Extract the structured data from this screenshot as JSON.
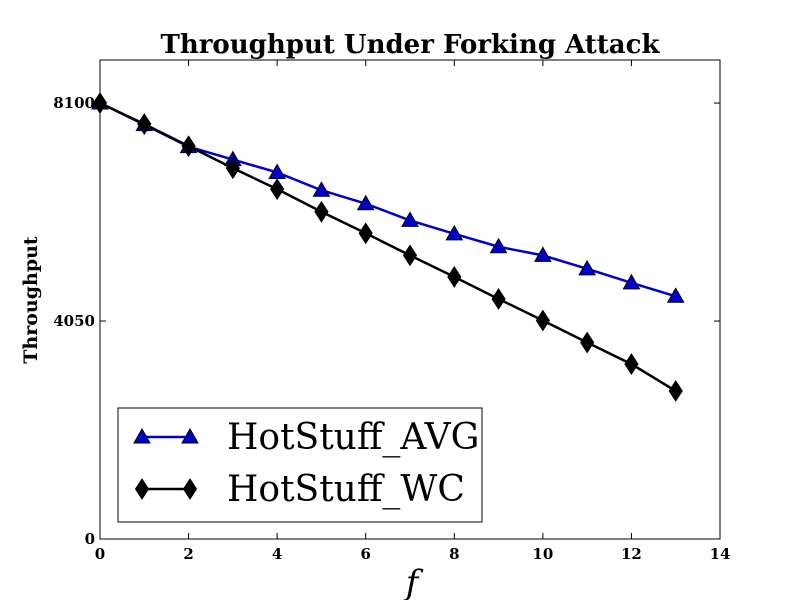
{
  "chart_data": {
    "type": "line",
    "title": "Throughput Under Forking Attack",
    "xlabel": "f",
    "ylabel": "Throughput",
    "xlim": [
      0,
      14
    ],
    "ylim": [
      0,
      8900
    ],
    "xticks": [
      "0",
      "2",
      "4",
      "6",
      "8",
      "10",
      "12",
      "14"
    ],
    "yticks": [
      "0",
      "4050",
      "8100"
    ],
    "grid": false,
    "legend_placement": "lower-left",
    "series": [
      {
        "name": "HotStuff_AVG",
        "color": "#0000cc",
        "marker": "triangle",
        "x": [
          0,
          1,
          2,
          3,
          4,
          5,
          6,
          7,
          8,
          9,
          10,
          11,
          12,
          13
        ],
        "y": [
          8100,
          7700,
          7290,
          7050,
          6810,
          6480,
          6230,
          5920,
          5670,
          5430,
          5270,
          5020,
          4760,
          4510
        ]
      },
      {
        "name": "HotStuff_WC",
        "color": "#000000",
        "marker": "diamond",
        "x": [
          0,
          1,
          2,
          3,
          4,
          5,
          6,
          7,
          8,
          9,
          10,
          11,
          12,
          13
        ],
        "y": [
          8100,
          7710,
          7300,
          6890,
          6500,
          6080,
          5680,
          5270,
          4870,
          4460,
          4060,
          3650,
          3250,
          2750
        ]
      }
    ]
  }
}
